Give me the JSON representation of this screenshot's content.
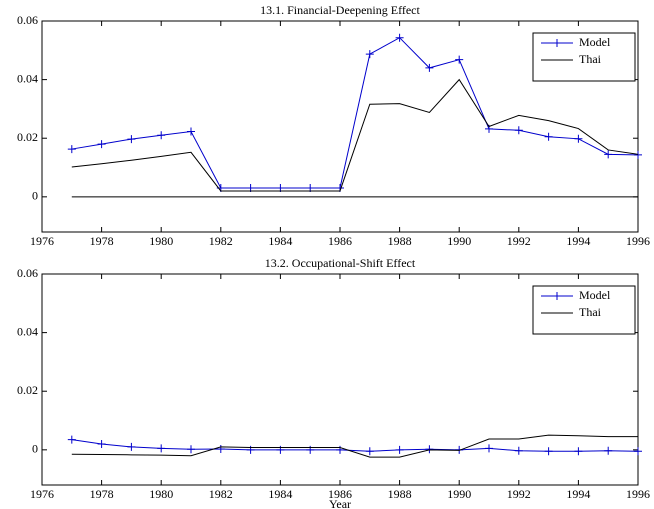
{
  "chart_data": [
    {
      "type": "line",
      "title": "13.1. Financial-Deepening Effect",
      "x": [
        1977,
        1978,
        1979,
        1980,
        1981,
        1982,
        1983,
        1984,
        1985,
        1986,
        1987,
        1988,
        1989,
        1990,
        1991,
        1992,
        1993,
        1994,
        1995,
        1996
      ],
      "series": [
        {
          "name": "Model",
          "color": "#0000cc",
          "marker": "+",
          "values": [
            0.0163,
            0.018,
            0.0197,
            0.021,
            0.0223,
            0.003,
            0.003,
            0.003,
            0.003,
            0.003,
            0.0487,
            0.0543,
            0.044,
            0.0468,
            0.0232,
            0.0227,
            0.0205,
            0.0198,
            0.0145,
            0.0143
          ]
        },
        {
          "name": "Thai",
          "color": "#000000",
          "values": [
            0.0102,
            0.0113,
            0.0125,
            0.0138,
            0.0152,
            0.002,
            0.002,
            0.002,
            0.002,
            0.002,
            0.0316,
            0.0318,
            0.0288,
            0.04,
            0.024,
            0.0278,
            0.026,
            0.0233,
            0.016,
            0.0145
          ]
        }
      ],
      "hline": {
        "value": 0,
        "from": 1977,
        "to": 1996,
        "color": "#000000"
      },
      "xlim": [
        1976,
        1996
      ],
      "xticks": [
        1976,
        1978,
        1980,
        1982,
        1984,
        1986,
        1988,
        1990,
        1992,
        1994,
        1996
      ],
      "ylim": [
        -0.012,
        0.06
      ],
      "yticks": [
        0,
        0.02,
        0.04,
        0.06
      ],
      "grid": false,
      "legend": "upper right"
    },
    {
      "type": "line",
      "title": "13.2. Occupational-Shift Effect",
      "xlabel": "Year",
      "x": [
        1977,
        1978,
        1979,
        1980,
        1981,
        1982,
        1983,
        1984,
        1985,
        1986,
        1987,
        1988,
        1989,
        1990,
        1991,
        1992,
        1993,
        1994,
        1995,
        1996
      ],
      "series": [
        {
          "name": "Model",
          "color": "#0000cc",
          "marker": "+",
          "values": [
            0.0035,
            0.002,
            0.001,
            0.0005,
            0.0002,
            0.0003,
            0,
            0,
            0,
            0,
            -0.0005,
            0,
            0.0002,
            0,
            0.0005,
            -0.0003,
            -0.0005,
            -0.0005,
            -0.0003,
            -0.0005
          ]
        },
        {
          "name": "Thai",
          "color": "#000000",
          "values": [
            -0.0015,
            -0.0016,
            -0.0017,
            -0.0018,
            -0.002,
            0.001,
            0.0008,
            0.0008,
            0.0008,
            0.0008,
            -0.0025,
            -0.0025,
            0,
            -0.0002,
            0.0037,
            0.0037,
            0.005,
            0.0048,
            0.0045,
            0.0045
          ]
        }
      ],
      "xlim": [
        1976,
        1996
      ],
      "xticks": [
        1976,
        1978,
        1980,
        1982,
        1984,
        1986,
        1988,
        1990,
        1992,
        1994,
        1996
      ],
      "ylim": [
        -0.012,
        0.06
      ],
      "yticks": [
        0,
        0.02,
        0.04,
        0.06
      ],
      "grid": false,
      "legend": "upper right"
    }
  ]
}
